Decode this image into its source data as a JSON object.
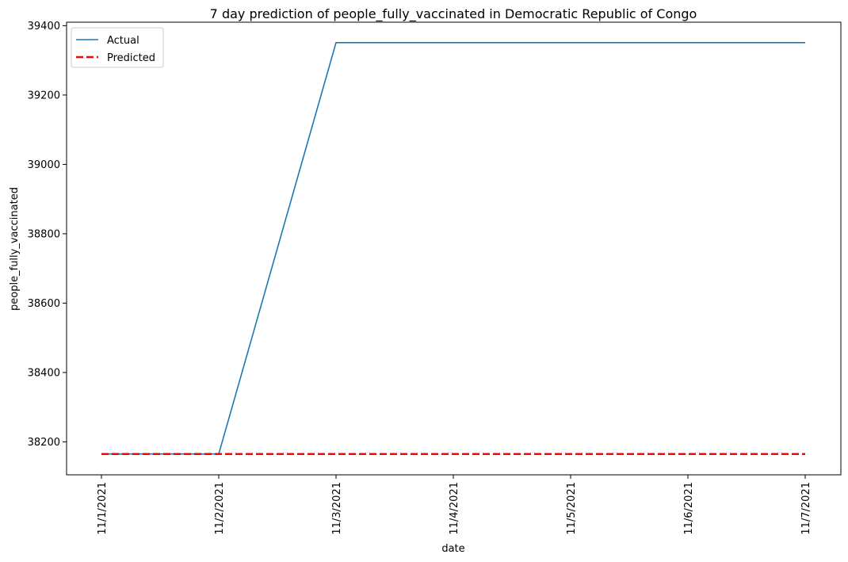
{
  "chart_data": {
    "type": "line",
    "title": "7 day prediction of people_fully_vaccinated in Democratic Republic of Congo",
    "xlabel": "date",
    "ylabel": "people_fully_vaccinated",
    "categories": [
      "11/1/2021",
      "11/2/2021",
      "11/3/2021",
      "11/4/2021",
      "11/5/2021",
      "11/6/2021",
      "11/7/2021"
    ],
    "yticks": [
      38200,
      38400,
      38600,
      38800,
      39000,
      39200,
      39400
    ],
    "ylim": [
      38105,
      39410
    ],
    "grid": false,
    "legend_position": "upper left",
    "series": [
      {
        "name": "Actual",
        "color": "#1f77b4",
        "style": "solid",
        "values": [
          38165,
          38165,
          39351,
          39351,
          39351,
          39351,
          39351
        ]
      },
      {
        "name": "Predicted",
        "color": "#ff0000",
        "style": "dashed",
        "values": [
          38165,
          38165,
          38165,
          38165,
          38165,
          38165,
          38165
        ]
      }
    ]
  }
}
